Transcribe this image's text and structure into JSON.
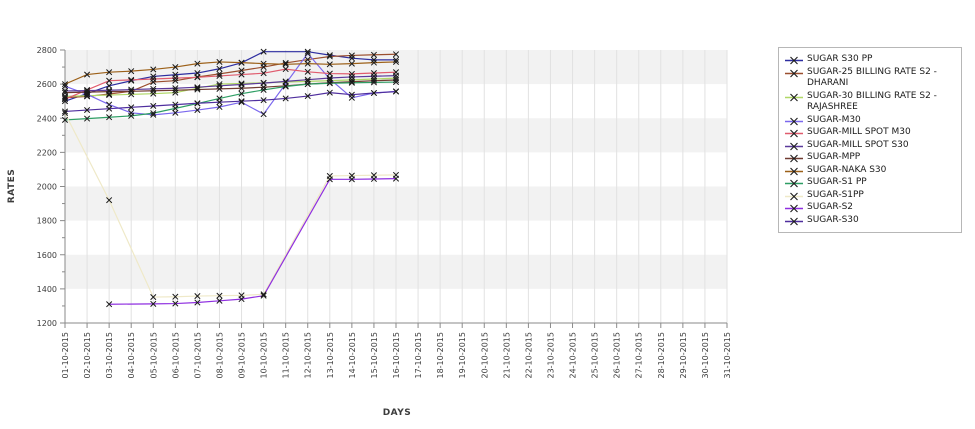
{
  "chart_data": {
    "type": "line",
    "title": "",
    "xlabel": "DAYS",
    "ylabel": "RATES",
    "ylim": [
      1200,
      2800
    ],
    "ytick_step": 200,
    "grid": true,
    "legend_position": "right",
    "band_color": "#f2f2f2",
    "grid_color": "#e2e2e2",
    "axis_color": "#8a8a8a",
    "marker_color": "#1a1a1a",
    "x_categories": [
      "01-10-2015",
      "02-10-2015",
      "03-10-2015",
      "04-10-2015",
      "05-10-2015",
      "06-10-2015",
      "07-10-2015",
      "08-10-2015",
      "09-10-2015",
      "10-10-2015",
      "11-10-2015",
      "12-10-2015",
      "13-10-2015",
      "14-10-2015",
      "15-10-2015",
      "16-10-2015",
      "17-10-2015",
      "18-10-2015",
      "19-10-2015",
      "20-10-2015",
      "21-10-2015",
      "22-10-2015",
      "23-10-2015",
      "24-10-2015",
      "25-10-2015",
      "26-10-2015",
      "27-10-2015",
      "28-10-2015",
      "29-10-2015",
      "30-10-2015",
      "31-10-2015"
    ],
    "series": [
      {
        "name": "SUGAR S30 PP",
        "color": "#2d2da0",
        "points": [
          [
            1,
            2500
          ],
          [
            2,
            2545
          ],
          [
            3,
            2590
          ],
          [
            4,
            2620
          ],
          [
            5,
            2645
          ],
          [
            6,
            2655
          ],
          [
            7,
            2665
          ],
          [
            8,
            2690
          ],
          [
            9,
            2725
          ],
          [
            10,
            2790
          ],
          [
            12,
            2790
          ],
          [
            13,
            2770
          ],
          [
            14,
            2752
          ],
          [
            15,
            2742
          ],
          [
            16,
            2742
          ]
        ]
      },
      {
        "name": "SUGAR-25 BILLING RATE S2 -DHARANI",
        "color": "#9b4f2f",
        "points": [
          [
            1,
            2520
          ],
          [
            2,
            2528
          ],
          [
            3,
            2542
          ],
          [
            4,
            2558
          ],
          [
            5,
            2612
          ],
          [
            6,
            2620
          ],
          [
            7,
            2642
          ],
          [
            8,
            2660
          ],
          [
            9,
            2680
          ],
          [
            10,
            2700
          ],
          [
            11,
            2724
          ],
          [
            12,
            2744
          ],
          [
            13,
            2762
          ],
          [
            14,
            2768
          ],
          [
            15,
            2772
          ],
          [
            16,
            2775
          ]
        ]
      },
      {
        "name": "SUGAR-30 BILLING RATE S2 -RAJASHREE",
        "color": "#b0d867",
        "points": [
          [
            1,
            2528
          ],
          [
            2,
            2532
          ],
          [
            3,
            2536
          ],
          [
            4,
            2540
          ],
          [
            5,
            2544
          ],
          [
            6,
            2550
          ],
          [
            7,
            2576
          ],
          [
            8,
            2600
          ],
          [
            9,
            2604
          ],
          [
            10,
            2608
          ],
          [
            11,
            2612
          ],
          [
            12,
            2616
          ],
          [
            13,
            2620
          ],
          [
            14,
            2625
          ],
          [
            15,
            2630
          ],
          [
            16,
            2635
          ]
        ]
      },
      {
        "name": "SUGAR-M30",
        "color": "#7b68ee",
        "points": [
          [
            1,
            2588
          ],
          [
            2,
            2540
          ],
          [
            3,
            2480
          ],
          [
            4,
            2432
          ],
          [
            5,
            2420
          ],
          [
            6,
            2432
          ],
          [
            7,
            2448
          ],
          [
            8,
            2466
          ],
          [
            9,
            2494
          ],
          [
            10,
            2424
          ],
          [
            12,
            2780
          ],
          [
            13,
            2630
          ],
          [
            14,
            2520
          ],
          [
            15,
            2548
          ],
          [
            16,
            2558
          ]
        ]
      },
      {
        "name": "SUGAR-MILL SPOT M30",
        "color": "#e05c6e",
        "points": [
          [
            1,
            2512
          ],
          [
            2,
            2566
          ],
          [
            3,
            2620
          ],
          [
            4,
            2625
          ],
          [
            5,
            2630
          ],
          [
            6,
            2635
          ],
          [
            7,
            2640
          ],
          [
            8,
            2648
          ],
          [
            9,
            2656
          ],
          [
            10,
            2664
          ],
          [
            11,
            2688
          ],
          [
            12,
            2672
          ],
          [
            13,
            2662
          ],
          [
            14,
            2660
          ],
          [
            15,
            2665
          ],
          [
            16,
            2670
          ]
        ]
      },
      {
        "name": "SUGAR-MILL SPOT S30",
        "color": "#5b3a9b",
        "points": [
          [
            1,
            2560
          ],
          [
            2,
            2562
          ],
          [
            3,
            2564
          ],
          [
            4,
            2568
          ],
          [
            5,
            2572
          ],
          [
            6,
            2576
          ],
          [
            7,
            2582
          ],
          [
            8,
            2590
          ],
          [
            9,
            2598
          ],
          [
            10,
            2606
          ],
          [
            11,
            2616
          ],
          [
            12,
            2626
          ],
          [
            13,
            2636
          ],
          [
            14,
            2642
          ],
          [
            15,
            2646
          ],
          [
            16,
            2650
          ]
        ]
      },
      {
        "name": "SUGAR-MPP",
        "color": "#713c32",
        "points": [
          [
            1,
            2550
          ],
          [
            2,
            2553
          ],
          [
            3,
            2556
          ],
          [
            4,
            2558
          ],
          [
            5,
            2561
          ],
          [
            6,
            2564
          ],
          [
            7,
            2568
          ],
          [
            8,
            2572
          ],
          [
            9,
            2576
          ],
          [
            10,
            2582
          ],
          [
            11,
            2590
          ],
          [
            12,
            2600
          ],
          [
            13,
            2608
          ],
          [
            14,
            2614
          ],
          [
            15,
            2620
          ],
          [
            16,
            2624
          ]
        ]
      },
      {
        "name": "SUGAR-NAKA S30",
        "color": "#9c6018",
        "points": [
          [
            1,
            2600
          ],
          [
            2,
            2656
          ],
          [
            3,
            2670
          ],
          [
            4,
            2676
          ],
          [
            5,
            2686
          ],
          [
            6,
            2700
          ],
          [
            7,
            2720
          ],
          [
            8,
            2730
          ],
          [
            9,
            2726
          ],
          [
            10,
            2720
          ],
          [
            11,
            2716
          ],
          [
            12,
            2720
          ],
          [
            13,
            2716
          ],
          [
            14,
            2720
          ],
          [
            15,
            2726
          ],
          [
            16,
            2730
          ]
        ]
      },
      {
        "name": "SUGAR-S1 PP",
        "color": "#2e9e64",
        "points": [
          [
            1,
            2390
          ],
          [
            2,
            2398
          ],
          [
            3,
            2406
          ],
          [
            4,
            2414
          ],
          [
            5,
            2430
          ],
          [
            6,
            2458
          ],
          [
            7,
            2486
          ],
          [
            8,
            2516
          ],
          [
            9,
            2544
          ],
          [
            10,
            2566
          ],
          [
            11,
            2586
          ],
          [
            12,
            2600
          ],
          [
            13,
            2605
          ],
          [
            14,
            2608
          ],
          [
            15,
            2610
          ],
          [
            16,
            2612
          ]
        ]
      },
      {
        "name": "SUGAR-S1PP",
        "color": "#efe9c8",
        "points": [
          [
            1,
            2430
          ],
          [
            3,
            1920
          ],
          [
            5,
            1352
          ],
          [
            6,
            1354
          ],
          [
            7,
            1358
          ],
          [
            8,
            1360
          ],
          [
            9,
            1362
          ],
          [
            10,
            1368
          ],
          [
            13,
            2062
          ],
          [
            14,
            2064
          ],
          [
            15,
            2066
          ],
          [
            16,
            2068
          ]
        ]
      },
      {
        "name": "SUGAR-S2",
        "color": "#8f2fe0",
        "points": [
          [
            3,
            1310
          ],
          [
            5,
            1312
          ],
          [
            6,
            1314
          ],
          [
            7,
            1320
          ],
          [
            8,
            1330
          ],
          [
            9,
            1340
          ],
          [
            10,
            1360
          ],
          [
            13,
            2042
          ],
          [
            14,
            2042
          ],
          [
            15,
            2044
          ],
          [
            16,
            2046
          ]
        ]
      },
      {
        "name": "SUGAR-S30",
        "color": "#4f2e9e",
        "points": [
          [
            1,
            2440
          ],
          [
            2,
            2448
          ],
          [
            3,
            2456
          ],
          [
            4,
            2464
          ],
          [
            5,
            2472
          ],
          [
            6,
            2480
          ],
          [
            7,
            2488
          ],
          [
            8,
            2494
          ],
          [
            9,
            2500
          ],
          [
            10,
            2506
          ],
          [
            11,
            2516
          ],
          [
            12,
            2530
          ],
          [
            13,
            2550
          ],
          [
            14,
            2538
          ],
          [
            15,
            2548
          ],
          [
            16,
            2556
          ]
        ]
      }
    ]
  }
}
